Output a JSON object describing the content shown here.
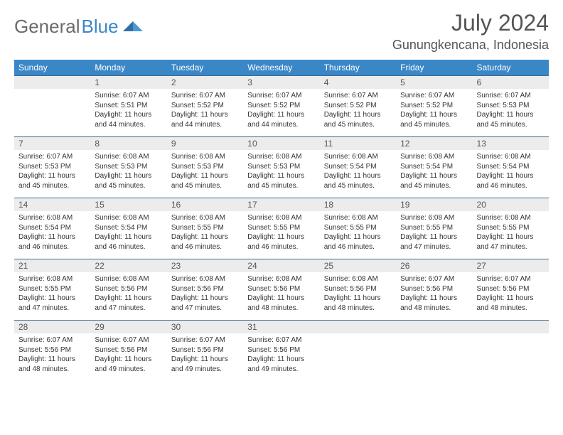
{
  "brand": {
    "part1": "General",
    "part2": "Blue"
  },
  "title": "July 2024",
  "location": "Gunungkencana, Indonesia",
  "colors": {
    "header_bg": "#3a87c8",
    "row_border": "#3a6b92",
    "daynum_bg": "#ececec",
    "text": "#333333",
    "title_text": "#555555",
    "logo_gray": "#6b6b6b",
    "logo_blue": "#3a87c8",
    "page_bg": "#ffffff"
  },
  "weekdays": [
    "Sunday",
    "Monday",
    "Tuesday",
    "Wednesday",
    "Thursday",
    "Friday",
    "Saturday"
  ],
  "start_offset": 1,
  "days": [
    {
      "n": 1,
      "sunrise": "6:07 AM",
      "sunset": "5:51 PM",
      "daylight": "11 hours and 44 minutes."
    },
    {
      "n": 2,
      "sunrise": "6:07 AM",
      "sunset": "5:52 PM",
      "daylight": "11 hours and 44 minutes."
    },
    {
      "n": 3,
      "sunrise": "6:07 AM",
      "sunset": "5:52 PM",
      "daylight": "11 hours and 44 minutes."
    },
    {
      "n": 4,
      "sunrise": "6:07 AM",
      "sunset": "5:52 PM",
      "daylight": "11 hours and 45 minutes."
    },
    {
      "n": 5,
      "sunrise": "6:07 AM",
      "sunset": "5:52 PM",
      "daylight": "11 hours and 45 minutes."
    },
    {
      "n": 6,
      "sunrise": "6:07 AM",
      "sunset": "5:53 PM",
      "daylight": "11 hours and 45 minutes."
    },
    {
      "n": 7,
      "sunrise": "6:07 AM",
      "sunset": "5:53 PM",
      "daylight": "11 hours and 45 minutes."
    },
    {
      "n": 8,
      "sunrise": "6:08 AM",
      "sunset": "5:53 PM",
      "daylight": "11 hours and 45 minutes."
    },
    {
      "n": 9,
      "sunrise": "6:08 AM",
      "sunset": "5:53 PM",
      "daylight": "11 hours and 45 minutes."
    },
    {
      "n": 10,
      "sunrise": "6:08 AM",
      "sunset": "5:53 PM",
      "daylight": "11 hours and 45 minutes."
    },
    {
      "n": 11,
      "sunrise": "6:08 AM",
      "sunset": "5:54 PM",
      "daylight": "11 hours and 45 minutes."
    },
    {
      "n": 12,
      "sunrise": "6:08 AM",
      "sunset": "5:54 PM",
      "daylight": "11 hours and 45 minutes."
    },
    {
      "n": 13,
      "sunrise": "6:08 AM",
      "sunset": "5:54 PM",
      "daylight": "11 hours and 46 minutes."
    },
    {
      "n": 14,
      "sunrise": "6:08 AM",
      "sunset": "5:54 PM",
      "daylight": "11 hours and 46 minutes."
    },
    {
      "n": 15,
      "sunrise": "6:08 AM",
      "sunset": "5:54 PM",
      "daylight": "11 hours and 46 minutes."
    },
    {
      "n": 16,
      "sunrise": "6:08 AM",
      "sunset": "5:55 PM",
      "daylight": "11 hours and 46 minutes."
    },
    {
      "n": 17,
      "sunrise": "6:08 AM",
      "sunset": "5:55 PM",
      "daylight": "11 hours and 46 minutes."
    },
    {
      "n": 18,
      "sunrise": "6:08 AM",
      "sunset": "5:55 PM",
      "daylight": "11 hours and 46 minutes."
    },
    {
      "n": 19,
      "sunrise": "6:08 AM",
      "sunset": "5:55 PM",
      "daylight": "11 hours and 47 minutes."
    },
    {
      "n": 20,
      "sunrise": "6:08 AM",
      "sunset": "5:55 PM",
      "daylight": "11 hours and 47 minutes."
    },
    {
      "n": 21,
      "sunrise": "6:08 AM",
      "sunset": "5:55 PM",
      "daylight": "11 hours and 47 minutes."
    },
    {
      "n": 22,
      "sunrise": "6:08 AM",
      "sunset": "5:56 PM",
      "daylight": "11 hours and 47 minutes."
    },
    {
      "n": 23,
      "sunrise": "6:08 AM",
      "sunset": "5:56 PM",
      "daylight": "11 hours and 47 minutes."
    },
    {
      "n": 24,
      "sunrise": "6:08 AM",
      "sunset": "5:56 PM",
      "daylight": "11 hours and 48 minutes."
    },
    {
      "n": 25,
      "sunrise": "6:08 AM",
      "sunset": "5:56 PM",
      "daylight": "11 hours and 48 minutes."
    },
    {
      "n": 26,
      "sunrise": "6:07 AM",
      "sunset": "5:56 PM",
      "daylight": "11 hours and 48 minutes."
    },
    {
      "n": 27,
      "sunrise": "6:07 AM",
      "sunset": "5:56 PM",
      "daylight": "11 hours and 48 minutes."
    },
    {
      "n": 28,
      "sunrise": "6:07 AM",
      "sunset": "5:56 PM",
      "daylight": "11 hours and 48 minutes."
    },
    {
      "n": 29,
      "sunrise": "6:07 AM",
      "sunset": "5:56 PM",
      "daylight": "11 hours and 49 minutes."
    },
    {
      "n": 30,
      "sunrise": "6:07 AM",
      "sunset": "5:56 PM",
      "daylight": "11 hours and 49 minutes."
    },
    {
      "n": 31,
      "sunrise": "6:07 AM",
      "sunset": "5:56 PM",
      "daylight": "11 hours and 49 minutes."
    }
  ],
  "labels": {
    "sunrise": "Sunrise:",
    "sunset": "Sunset:",
    "daylight": "Daylight:"
  }
}
